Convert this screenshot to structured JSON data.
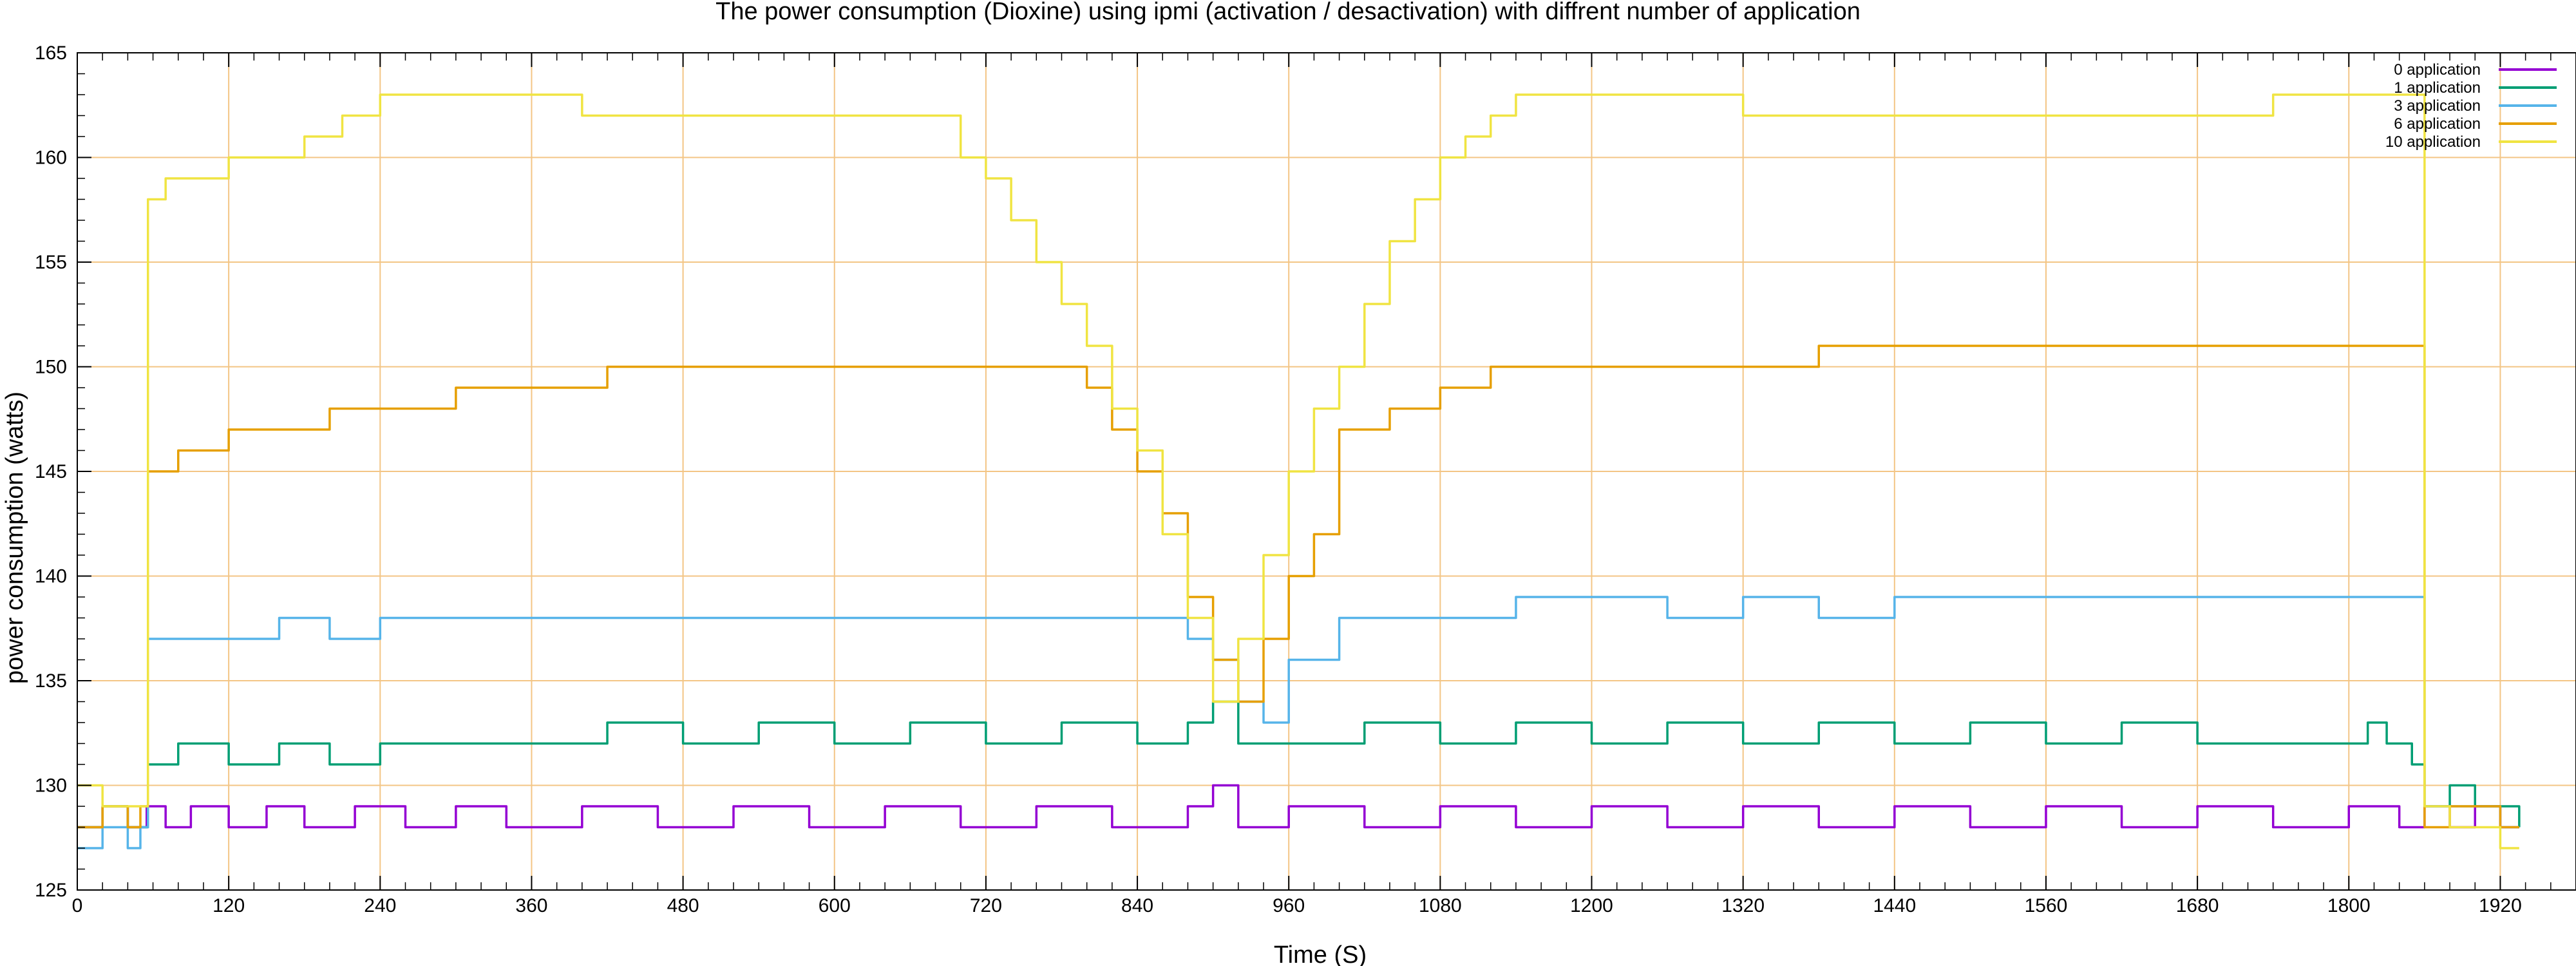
{
  "chart_data": {
    "type": "line",
    "title": "The power consumption (Dioxine) using ipmi (activation / desactivation) with diffrent number of application",
    "xlabel": "Time (S)",
    "ylabel": "power consumption (watts)",
    "xlim": [
      0,
      1980
    ],
    "ylim": [
      125,
      165
    ],
    "xticks": [
      0,
      120,
      240,
      360,
      480,
      600,
      720,
      840,
      960,
      1080,
      1200,
      1320,
      1440,
      1560,
      1680,
      1800,
      1920
    ],
    "yticks": [
      125,
      130,
      135,
      140,
      145,
      150,
      155,
      160,
      165
    ],
    "grid": true,
    "legend_position": "top-right",
    "series": [
      {
        "name": "0 application",
        "color": "#9400d3",
        "x": [
          0,
          20,
          40,
          55,
          70,
          90,
          120,
          150,
          180,
          220,
          260,
          300,
          340,
          400,
          460,
          520,
          580,
          640,
          700,
          760,
          820,
          880,
          900,
          920,
          960,
          1020,
          1080,
          1140,
          1200,
          1260,
          1320,
          1380,
          1440,
          1500,
          1560,
          1620,
          1680,
          1740,
          1800,
          1840,
          1860,
          1880,
          1900,
          1920,
          1935
        ],
        "y": [
          128,
          129,
          128,
          129,
          128,
          129,
          128,
          129,
          128,
          129,
          128,
          129,
          128,
          129,
          128,
          129,
          128,
          129,
          128,
          129,
          128,
          129,
          130,
          128,
          129,
          128,
          129,
          128,
          129,
          128,
          129,
          128,
          129,
          128,
          129,
          128,
          129,
          128,
          129,
          128,
          129,
          128,
          129,
          128,
          128
        ]
      },
      {
        "name": "1 application",
        "color": "#009e73",
        "x": [
          0,
          20,
          40,
          52,
          56,
          80,
          120,
          160,
          200,
          240,
          300,
          360,
          420,
          480,
          540,
          600,
          660,
          720,
          780,
          840,
          880,
          900,
          920,
          960,
          1020,
          1080,
          1140,
          1200,
          1260,
          1320,
          1380,
          1440,
          1500,
          1560,
          1620,
          1680,
          1740,
          1800,
          1815,
          1830,
          1850,
          1860,
          1880,
          1900,
          1920,
          1935
        ],
        "y": [
          128,
          129,
          128,
          128,
          131,
          132,
          131,
          132,
          131,
          132,
          132,
          132,
          133,
          132,
          133,
          132,
          133,
          132,
          133,
          132,
          133,
          134,
          132,
          132,
          133,
          132,
          133,
          132,
          133,
          132,
          133,
          132,
          133,
          132,
          133,
          132,
          132,
          132,
          133,
          132,
          131,
          129,
          130,
          129,
          129,
          128
        ]
      },
      {
        "name": "3 application",
        "color": "#56b4e9",
        "x": [
          0,
          20,
          40,
          50,
          56,
          80,
          120,
          160,
          200,
          240,
          300,
          360,
          420,
          480,
          540,
          600,
          660,
          720,
          780,
          820,
          860,
          880,
          900,
          920,
          940,
          960,
          980,
          1000,
          1040,
          1080,
          1140,
          1200,
          1260,
          1320,
          1380,
          1440,
          1500,
          1560,
          1620,
          1680,
          1740,
          1800,
          1855,
          1860,
          1880,
          1900,
          1920,
          1935
        ],
        "y": [
          127,
          128,
          127,
          128,
          137,
          137,
          137,
          138,
          137,
          138,
          138,
          138,
          138,
          138,
          138,
          138,
          138,
          138,
          138,
          138,
          138,
          137,
          136,
          134,
          133,
          136,
          136,
          138,
          138,
          138,
          139,
          139,
          138,
          139,
          138,
          139,
          139,
          139,
          139,
          139,
          139,
          139,
          139,
          129,
          129,
          129,
          128,
          128
        ]
      },
      {
        "name": "6 application",
        "color": "#e69f00",
        "x": [
          0,
          20,
          40,
          50,
          56,
          80,
          120,
          160,
          200,
          240,
          300,
          360,
          420,
          480,
          540,
          600,
          660,
          700,
          740,
          780,
          800,
          820,
          840,
          860,
          880,
          900,
          920,
          940,
          960,
          980,
          1000,
          1040,
          1080,
          1120,
          1160,
          1200,
          1260,
          1320,
          1380,
          1440,
          1500,
          1560,
          1620,
          1680,
          1740,
          1800,
          1855,
          1860,
          1880,
          1900,
          1920,
          1935
        ],
        "y": [
          128,
          129,
          128,
          129,
          145,
          146,
          147,
          147,
          148,
          148,
          149,
          149,
          150,
          150,
          150,
          150,
          150,
          150,
          150,
          150,
          149,
          147,
          145,
          143,
          139,
          136,
          134,
          137,
          140,
          142,
          147,
          148,
          149,
          150,
          150,
          150,
          150,
          150,
          151,
          151,
          151,
          151,
          151,
          151,
          151,
          151,
          151,
          128,
          129,
          129,
          128,
          128
        ]
      },
      {
        "name": "10 application",
        "color": "#f0e442",
        "x": [
          0,
          20,
          40,
          50,
          56,
          70,
          90,
          120,
          150,
          180,
          210,
          240,
          280,
          320,
          360,
          400,
          440,
          480,
          540,
          600,
          660,
          700,
          720,
          740,
          760,
          780,
          800,
          820,
          840,
          860,
          880,
          900,
          920,
          940,
          960,
          980,
          1000,
          1020,
          1040,
          1060,
          1080,
          1100,
          1120,
          1140,
          1160,
          1200,
          1260,
          1320,
          1380,
          1440,
          1500,
          1560,
          1620,
          1680,
          1740,
          1800,
          1855,
          1860,
          1880,
          1900,
          1920,
          1935
        ],
        "y": [
          130,
          129,
          129,
          129,
          158,
          159,
          159,
          160,
          160,
          161,
          162,
          163,
          163,
          163,
          163,
          162,
          162,
          162,
          162,
          162,
          162,
          160,
          159,
          157,
          155,
          153,
          151,
          148,
          146,
          142,
          138,
          134,
          137,
          141,
          145,
          148,
          150,
          153,
          156,
          158,
          160,
          161,
          162,
          163,
          163,
          163,
          163,
          162,
          162,
          162,
          162,
          162,
          162,
          162,
          163,
          163,
          163,
          129,
          128,
          128,
          127,
          127
        ]
      }
    ]
  }
}
